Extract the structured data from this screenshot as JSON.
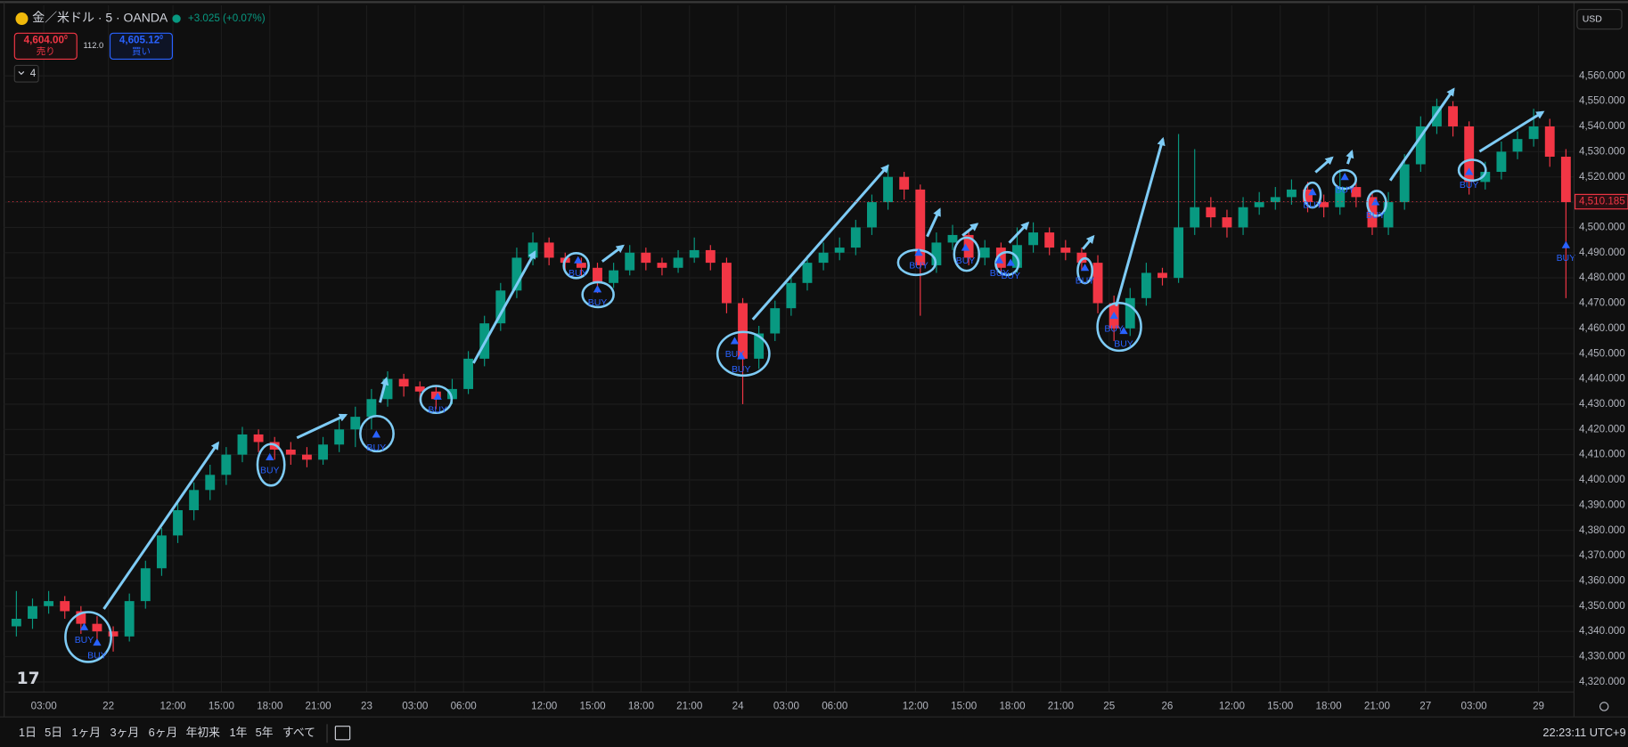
{
  "header": {
    "symbol": "金／米ドル · 5 · OANDA",
    "change": "+3.025 (+0.07%)",
    "sell_price": "4,604.00",
    "sell_sup": "0",
    "sell_label": "売り",
    "spread": "112.0",
    "buy_price": "4,605.12",
    "buy_sup": "0",
    "buy_label": "買い",
    "indicator_count": "4",
    "currency": "USD"
  },
  "toolbar": {
    "ranges": [
      "1日",
      "5日",
      "1ヶ月",
      "3ヶ月",
      "6ヶ月",
      "年初来",
      "1年",
      "5年",
      "すべて"
    ],
    "clock": "22:23:11 UTC+9"
  },
  "chart_data": {
    "type": "candlestick",
    "grid": true,
    "colors": {
      "up": "#089981",
      "down": "#f23645",
      "signal": "#2962ff"
    },
    "xlim": [
      0,
      97
    ],
    "xticks": [
      {
        "value": 2.2,
        "label": "03:00"
      },
      {
        "value": 6.2,
        "label": "22"
      },
      {
        "value": 10.2,
        "label": "12:00"
      },
      {
        "value": 13.2,
        "label": "15:00"
      },
      {
        "value": 16.2,
        "label": "18:00"
      },
      {
        "value": 19.2,
        "label": "21:00"
      },
      {
        "value": 22.2,
        "label": "23"
      },
      {
        "value": 25.2,
        "label": "03:00"
      },
      {
        "value": 28.2,
        "label": "06:00"
      },
      {
        "value": 33.2,
        "label": "12:00"
      },
      {
        "value": 36.2,
        "label": "15:00"
      },
      {
        "value": 39.2,
        "label": "18:00"
      },
      {
        "value": 42.2,
        "label": "21:00"
      },
      {
        "value": 45.2,
        "label": "24"
      },
      {
        "value": 48.2,
        "label": "03:00"
      },
      {
        "value": 51.2,
        "label": "06:00"
      },
      {
        "value": 56.2,
        "label": "12:00"
      },
      {
        "value": 59.2,
        "label": "15:00"
      },
      {
        "value": 62.2,
        "label": "18:00"
      },
      {
        "value": 65.2,
        "label": "21:00"
      },
      {
        "value": 68.2,
        "label": "25"
      },
      {
        "value": 71.8,
        "label": "26"
      },
      {
        "value": 75.8,
        "label": "12:00"
      },
      {
        "value": 78.8,
        "label": "15:00"
      },
      {
        "value": 81.8,
        "label": "18:00"
      },
      {
        "value": 84.8,
        "label": "21:00"
      },
      {
        "value": 87.8,
        "label": "27"
      },
      {
        "value": 90.8,
        "label": "03:00"
      },
      {
        "value": 94.8,
        "label": "29"
      }
    ],
    "ylim": [
      4316,
      4588
    ],
    "yticks": [
      {
        "value": 4320,
        "label": "4,320.000"
      },
      {
        "value": 4330,
        "label": "4,330.000"
      },
      {
        "value": 4340,
        "label": "4,340.000"
      },
      {
        "value": 4350,
        "label": "4,350.000"
      },
      {
        "value": 4360,
        "label": "4,360.000"
      },
      {
        "value": 4370,
        "label": "4,370.000"
      },
      {
        "value": 4380,
        "label": "4,380.000"
      },
      {
        "value": 4390,
        "label": "4,390.000"
      },
      {
        "value": 4400,
        "label": "4,400.000"
      },
      {
        "value": 4410,
        "label": "4,410.000"
      },
      {
        "value": 4420,
        "label": "4,420.000"
      },
      {
        "value": 4430,
        "label": "4,430.000"
      },
      {
        "value": 4440,
        "label": "4,440.000"
      },
      {
        "value": 4450,
        "label": "4,450.000"
      },
      {
        "value": 4460,
        "label": "4,460.000"
      },
      {
        "value": 4470,
        "label": "4,470.000"
      },
      {
        "value": 4480,
        "label": "4,480.000"
      },
      {
        "value": 4490,
        "label": "4,490.000"
      },
      {
        "value": 4500,
        "label": "4,500.000"
      },
      {
        "value": 4510,
        "label": "4,510.000"
      },
      {
        "value": 4520,
        "label": "4,520.000"
      },
      {
        "value": 4530,
        "label": "4,530.000"
      },
      {
        "value": 4540,
        "label": "4,540.000"
      },
      {
        "value": 4550,
        "label": "4,550.000"
      },
      {
        "value": 4560,
        "label": "4,560.000"
      }
    ],
    "last_price": 4510.185,
    "last_price_label": "4,510.185",
    "ohlc": [
      [
        4342,
        4356,
        4338,
        4345
      ],
      [
        4345,
        4353,
        4341,
        4350
      ],
      [
        4350,
        4356,
        4347,
        4352
      ],
      [
        4352,
        4354,
        4345,
        4348
      ],
      [
        4348,
        4350,
        4339,
        4343
      ],
      [
        4343,
        4346,
        4335,
        4340
      ],
      [
        4340,
        4342,
        4332,
        4338
      ],
      [
        4338,
        4355,
        4336,
        4352
      ],
      [
        4352,
        4368,
        4349,
        4365
      ],
      [
        4365,
        4381,
        4362,
        4378
      ],
      [
        4378,
        4392,
        4375,
        4388
      ],
      [
        4388,
        4399,
        4384,
        4396
      ],
      [
        4396,
        4406,
        4392,
        4402
      ],
      [
        4402,
        4413,
        4398,
        4410
      ],
      [
        4410,
        4421,
        4407,
        4418
      ],
      [
        4418,
        4420,
        4411,
        4415
      ],
      [
        4415,
        4417,
        4408,
        4412
      ],
      [
        4412,
        4415,
        4406,
        4410
      ],
      [
        4410,
        4413,
        4405,
        4408
      ],
      [
        4408,
        4417,
        4406,
        4414
      ],
      [
        4414,
        4424,
        4411,
        4420
      ],
      [
        4420,
        4429,
        4413,
        4425
      ],
      [
        4425,
        4436,
        4420,
        4432
      ],
      [
        4432,
        4443,
        4429,
        4440
      ],
      [
        4440,
        4442,
        4433,
        4437
      ],
      [
        4437,
        4439,
        4431,
        4435
      ],
      [
        4435,
        4437,
        4428,
        4432
      ],
      [
        4432,
        4440,
        4430,
        4436
      ],
      [
        4436,
        4451,
        4434,
        4448
      ],
      [
        4448,
        4465,
        4445,
        4462
      ],
      [
        4462,
        4478,
        4459,
        4475
      ],
      [
        4475,
        4492,
        4472,
        4488
      ],
      [
        4488,
        4498,
        4485,
        4494
      ],
      [
        4494,
        4496,
        4485,
        4488
      ],
      [
        4488,
        4490,
        4483,
        4486
      ],
      [
        4486,
        4488,
        4480,
        4484
      ],
      [
        4484,
        4486,
        4474,
        4478
      ],
      [
        4478,
        4486,
        4476,
        4483
      ],
      [
        4483,
        4493,
        4481,
        4490
      ],
      [
        4490,
        4492,
        4483,
        4486
      ],
      [
        4486,
        4488,
        4481,
        4484
      ],
      [
        4484,
        4491,
        4482,
        4488
      ],
      [
        4488,
        4496,
        4486,
        4491
      ],
      [
        4491,
        4493,
        4483,
        4486
      ],
      [
        4486,
        4488,
        4466,
        4470
      ],
      [
        4470,
        4472,
        4430,
        4448
      ],
      [
        4448,
        4461,
        4444,
        4458
      ],
      [
        4458,
        4471,
        4455,
        4468
      ],
      [
        4468,
        4481,
        4465,
        4478
      ],
      [
        4478,
        4489,
        4475,
        4486
      ],
      [
        4486,
        4494,
        4483,
        4490
      ],
      [
        4490,
        4496,
        4487,
        4492
      ],
      [
        4492,
        4503,
        4489,
        4500
      ],
      [
        4500,
        4513,
        4497,
        4510
      ],
      [
        4510,
        4525,
        4507,
        4520
      ],
      [
        4520,
        4522,
        4511,
        4515
      ],
      [
        4515,
        4517,
        4465,
        4485
      ],
      [
        4485,
        4498,
        4482,
        4494
      ],
      [
        4494,
        4501,
        4491,
        4497
      ],
      [
        4497,
        4499,
        4485,
        4488
      ],
      [
        4488,
        4495,
        4485,
        4492
      ],
      [
        4492,
        4494,
        4481,
        4484
      ],
      [
        4484,
        4500,
        4482,
        4493
      ],
      [
        4493,
        4502,
        4490,
        4498
      ],
      [
        4498,
        4500,
        4489,
        4492
      ],
      [
        4492,
        4495,
        4487,
        4490
      ],
      [
        4490,
        4492,
        4483,
        4486
      ],
      [
        4486,
        4489,
        4466,
        4470
      ],
      [
        4470,
        4473,
        4455,
        4460
      ],
      [
        4460,
        4476,
        4457,
        4472
      ],
      [
        4472,
        4486,
        4469,
        4482
      ],
      [
        4482,
        4484,
        4477,
        4480
      ],
      [
        4480,
        4537,
        4478,
        4500
      ],
      [
        4500,
        4531,
        4497,
        4508
      ],
      [
        4508,
        4512,
        4500,
        4504
      ],
      [
        4504,
        4507,
        4496,
        4500
      ],
      [
        4500,
        4512,
        4497,
        4508
      ],
      [
        4508,
        4514,
        4505,
        4510
      ],
      [
        4510,
        4516,
        4507,
        4512
      ],
      [
        4512,
        4519,
        4509,
        4515
      ],
      [
        4515,
        4518,
        4506,
        4510
      ],
      [
        4510,
        4513,
        4504,
        4508
      ],
      [
        4508,
        4523,
        4505,
        4516
      ],
      [
        4516,
        4519,
        4508,
        4512
      ],
      [
        4512,
        4514,
        4497,
        4500
      ],
      [
        4500,
        4514,
        4497,
        4510
      ],
      [
        4510,
        4529,
        4507,
        4525
      ],
      [
        4525,
        4544,
        4522,
        4540
      ],
      [
        4540,
        4551,
        4537,
        4548
      ],
      [
        4548,
        4550,
        4536,
        4540
      ],
      [
        4540,
        4542,
        4513,
        4518
      ],
      [
        4518,
        4526,
        4515,
        4522
      ],
      [
        4522,
        4534,
        4519,
        4530
      ],
      [
        4530,
        4538,
        4527,
        4535
      ],
      [
        4535,
        4547,
        4532,
        4540
      ],
      [
        4540,
        4543,
        4524,
        4528
      ],
      [
        4528,
        4531,
        4472,
        4510
      ]
    ],
    "signals": [
      {
        "x": 4.7,
        "y": 4341.7,
        "label": "BUY"
      },
      {
        "x": 5.5,
        "y": 4335.6,
        "label": "BUY"
      },
      {
        "x": 16.2,
        "y": 4409,
        "label": "BUY"
      },
      {
        "x": 22.8,
        "y": 4418,
        "label": "BUY"
      },
      {
        "x": 26.6,
        "y": 4433,
        "label": "BUY"
      },
      {
        "x": 35.3,
        "y": 4487,
        "label": "BUY"
      },
      {
        "x": 36.5,
        "y": 4475.5,
        "label": "BUY"
      },
      {
        "x": 45.0,
        "y": 4455,
        "label": "BUY"
      },
      {
        "x": 45.4,
        "y": 4449,
        "label": "BUY"
      },
      {
        "x": 56.4,
        "y": 4490,
        "label": "BUY"
      },
      {
        "x": 59.3,
        "y": 4492,
        "label": "BUY"
      },
      {
        "x": 61.4,
        "y": 4487,
        "label": "BUY"
      },
      {
        "x": 62.1,
        "y": 4486,
        "label": "BUY"
      },
      {
        "x": 66.7,
        "y": 4484,
        "label": "BUY"
      },
      {
        "x": 68.5,
        "y": 4465,
        "label": "BUY"
      },
      {
        "x": 69.1,
        "y": 4459,
        "label": "BUY"
      },
      {
        "x": 80.8,
        "y": 4514,
        "label": "BUY"
      },
      {
        "x": 82.8,
        "y": 4520,
        "label": "BUY"
      },
      {
        "x": 84.7,
        "y": 4510,
        "label": "BUY"
      },
      {
        "x": 90.5,
        "y": 4522,
        "label": "BUY"
      },
      {
        "x": 96.5,
        "y": 4493,
        "label": "BUY"
      }
    ]
  }
}
